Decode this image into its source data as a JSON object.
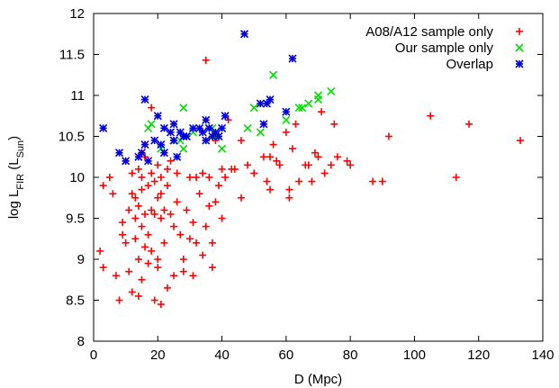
{
  "chart_data": {
    "type": "scatter",
    "title": "",
    "xlabel": "D (Mpc)",
    "ylabel": {
      "prefix": "log L",
      "prefix_sub": "FIR",
      "mid": " (L",
      "unit_sub": "Sun",
      "suffix": ")"
    },
    "xlim": [
      0,
      140
    ],
    "ylim": [
      8,
      12
    ],
    "xticks": [
      0,
      20,
      40,
      60,
      80,
      100,
      120,
      140
    ],
    "yticks": [
      8,
      8.5,
      9,
      9.5,
      10,
      10.5,
      11,
      11.5,
      12
    ],
    "grid": false,
    "legend_position": "top-right",
    "series": [
      {
        "name": "A08/A12 sample only",
        "marker": "plus",
        "color": "#ff0000",
        "points": [
          [
            2,
            9.1
          ],
          [
            3,
            8.9
          ],
          [
            5,
            10.0
          ],
          [
            3,
            9.9
          ],
          [
            6,
            9.8
          ],
          [
            7,
            8.8
          ],
          [
            8,
            8.5
          ],
          [
            9,
            9.3
          ],
          [
            9,
            9.45
          ],
          [
            10,
            9.2
          ],
          [
            10,
            10.2
          ],
          [
            11,
            8.85
          ],
          [
            11,
            9.6
          ],
          [
            12,
            9.8
          ],
          [
            12,
            10.05
          ],
          [
            12,
            8.6
          ],
          [
            13,
            9.75
          ],
          [
            13,
            9.25
          ],
          [
            13,
            9.5
          ],
          [
            14,
            8.55
          ],
          [
            14,
            9.0
          ],
          [
            14,
            9.65
          ],
          [
            14,
            10.1
          ],
          [
            15,
            8.75
          ],
          [
            15,
            9.4
          ],
          [
            15,
            9.85
          ],
          [
            15,
            10.0
          ],
          [
            15,
            10.3
          ],
          [
            16,
            9.55
          ],
          [
            16,
            9.15
          ],
          [
            16,
            10.25
          ],
          [
            16,
            10.4
          ],
          [
            17,
            9.9
          ],
          [
            17,
            8.95
          ],
          [
            17,
            9.3
          ],
          [
            18,
            10.05
          ],
          [
            18,
            9.6
          ],
          [
            18,
            10.85
          ],
          [
            18,
            9.1
          ],
          [
            19,
            8.5
          ],
          [
            19,
            9.55
          ],
          [
            19,
            9.95
          ],
          [
            20,
            9.75
          ],
          [
            20,
            10.15
          ],
          [
            20,
            9.0
          ],
          [
            20,
            8.9
          ],
          [
            21,
            9.5
          ],
          [
            21,
            9.8
          ],
          [
            21,
            8.45
          ],
          [
            21,
            10.0
          ],
          [
            22,
            9.6
          ],
          [
            22,
            10.3
          ],
          [
            22,
            9.2
          ],
          [
            23,
            9.9
          ],
          [
            23,
            10.1
          ],
          [
            23,
            8.65
          ],
          [
            24,
            9.55
          ],
          [
            24,
            10.2
          ],
          [
            25,
            8.8
          ],
          [
            25,
            9.4
          ],
          [
            25,
            10.45
          ],
          [
            26,
            9.7
          ],
          [
            26,
            10.05
          ],
          [
            27,
            9.3
          ],
          [
            28,
            9.0
          ],
          [
            28,
            8.85
          ],
          [
            29,
            9.6
          ],
          [
            30,
            9.25
          ],
          [
            30,
            10.0
          ],
          [
            31,
            8.8
          ],
          [
            31,
            9.45
          ],
          [
            32,
            10.0
          ],
          [
            32,
            9.2
          ],
          [
            33,
            9.8
          ],
          [
            34,
            9.05
          ],
          [
            34,
            10.05
          ],
          [
            35,
            9.4
          ],
          [
            35,
            10.45
          ],
          [
            35,
            11.43
          ],
          [
            36,
            9.65
          ],
          [
            36,
            10.0
          ],
          [
            37,
            8.9
          ],
          [
            37,
            9.2
          ],
          [
            38,
            9.7
          ],
          [
            38,
            10.45
          ],
          [
            39,
            9.9
          ],
          [
            40,
            10.1
          ],
          [
            40,
            9.5
          ],
          [
            41,
            10.0
          ],
          [
            42,
            10.7
          ],
          [
            43,
            10.1
          ],
          [
            44,
            10.1
          ],
          [
            46,
            9.75
          ],
          [
            46,
            10.45
          ],
          [
            48,
            10.15
          ],
          [
            50,
            10.05
          ],
          [
            53,
            10.25
          ],
          [
            54,
            9.95
          ],
          [
            55,
            10.25
          ],
          [
            55,
            9.85
          ],
          [
            56,
            10.4
          ],
          [
            57,
            10.2
          ],
          [
            58,
            10.15
          ],
          [
            60,
            10.55
          ],
          [
            61,
            9.85
          ],
          [
            61,
            9.75
          ],
          [
            62,
            10.35
          ],
          [
            63,
            10.65
          ],
          [
            64,
            9.95
          ],
          [
            66,
            10.15
          ],
          [
            67,
            10.15
          ],
          [
            68,
            9.95
          ],
          [
            69,
            10.3
          ],
          [
            70,
            10.25
          ],
          [
            71,
            10.8
          ],
          [
            72,
            10.05
          ],
          [
            74,
            10.15
          ],
          [
            75,
            10.65
          ],
          [
            76,
            10.25
          ],
          [
            79,
            10.2
          ],
          [
            80,
            10.15
          ],
          [
            87,
            9.95
          ],
          [
            90,
            9.95
          ],
          [
            92,
            10.5
          ],
          [
            105,
            10.75
          ],
          [
            113,
            10.0
          ],
          [
            117,
            10.65
          ],
          [
            133,
            10.45
          ]
        ]
      },
      {
        "name": "Our sample only",
        "marker": "x",
        "color": "#00dd00",
        "points": [
          [
            17,
            10.6
          ],
          [
            18,
            10.65
          ],
          [
            21,
            10.35
          ],
          [
            25,
            10.45
          ],
          [
            27,
            10.45
          ],
          [
            28,
            10.35
          ],
          [
            28,
            10.85
          ],
          [
            31,
            10.55
          ],
          [
            37,
            10.6
          ],
          [
            38,
            10.5
          ],
          [
            40,
            10.35
          ],
          [
            48,
            10.6
          ],
          [
            50,
            10.85
          ],
          [
            52,
            10.55
          ],
          [
            56,
            11.25
          ],
          [
            60,
            10.7
          ],
          [
            64,
            10.85
          ],
          [
            65,
            10.85
          ],
          [
            67,
            10.9
          ],
          [
            70,
            10.95
          ],
          [
            70,
            11.0
          ],
          [
            74,
            11.05
          ]
        ]
      },
      {
        "name": "Overlap",
        "marker": "star",
        "color": "#0000dd",
        "points": [
          [
            3,
            10.6
          ],
          [
            8,
            10.3
          ],
          [
            10,
            10.2
          ],
          [
            14,
            10.25
          ],
          [
            15,
            10.3
          ],
          [
            16,
            10.95
          ],
          [
            16,
            10.4
          ],
          [
            17,
            10.2
          ],
          [
            19,
            10.45
          ],
          [
            20,
            10.75
          ],
          [
            21,
            10.4
          ],
          [
            22,
            10.6
          ],
          [
            22,
            10.3
          ],
          [
            24,
            10.55
          ],
          [
            25,
            10.65
          ],
          [
            25,
            10.45
          ],
          [
            26,
            10.25
          ],
          [
            27,
            10.55
          ],
          [
            28,
            10.5
          ],
          [
            29,
            10.5
          ],
          [
            31,
            10.6
          ],
          [
            33,
            10.6
          ],
          [
            34,
            10.55
          ],
          [
            35,
            10.45
          ],
          [
            35,
            10.7
          ],
          [
            36,
            10.6
          ],
          [
            37,
            10.5
          ],
          [
            38,
            10.55
          ],
          [
            39,
            10.5
          ],
          [
            40,
            10.6
          ],
          [
            41,
            10.75
          ],
          [
            47,
            11.75
          ],
          [
            52,
            10.9
          ],
          [
            53,
            10.65
          ],
          [
            54,
            10.9
          ],
          [
            55,
            10.95
          ],
          [
            60,
            10.8
          ],
          [
            62,
            11.45
          ]
        ]
      }
    ]
  }
}
